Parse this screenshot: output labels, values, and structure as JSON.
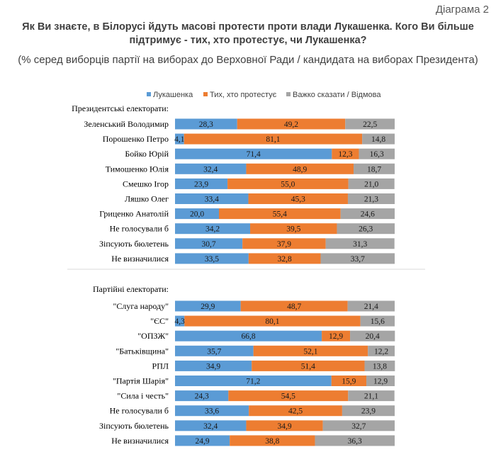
{
  "header": {
    "diagram_label": "Діаграма 2",
    "title_line1": "Як Ви знаєте, в Білорусі йдуть масові протести проти влади Лукашенка. Кого Ви більше",
    "title_line2": "підтримує - тих, хто протестує, чи Лукашенка?",
    "subtitle": "(% серед виборців партії на виборах до Верховної Ради / кандидата на виборах Президента)"
  },
  "chart_data": {
    "type": "bar",
    "orientation": "horizontal",
    "stacked": true,
    "xlim": [
      0,
      100
    ],
    "legend_position": "top",
    "legend": [
      {
        "name": "Лукашенка",
        "color": "#5b9bd5"
      },
      {
        "name": "Тих, хто протестує",
        "color": "#ed7d31"
      },
      {
        "name": "Важко сказати / Відмова",
        "color": "#a5a5a5"
      }
    ],
    "groups": [
      {
        "title": "Президентські електорати:",
        "rows": [
          {
            "label": "Зеленський Володимир",
            "values": [
              28.3,
              49.2,
              22.5
            ],
            "value_labels": [
              "28,3",
              "49,2",
              "22,5"
            ]
          },
          {
            "label": "Порошенко Петро",
            "values": [
              4.1,
              81.1,
              14.8
            ],
            "value_labels": [
              "4,1",
              "81,1",
              "14,8"
            ]
          },
          {
            "label": "Бойко Юрій",
            "values": [
              71.4,
              12.3,
              16.3
            ],
            "value_labels": [
              "71,4",
              "12,3",
              "16,3"
            ]
          },
          {
            "label": "Тимошенко Юлія",
            "values": [
              32.4,
              48.9,
              18.7
            ],
            "value_labels": [
              "32,4",
              "48,9",
              "18,7"
            ]
          },
          {
            "label": "Смешко Ігор",
            "values": [
              23.9,
              55.0,
              21.0
            ],
            "value_labels": [
              "23,9",
              "55,0",
              "21,0"
            ]
          },
          {
            "label": "Ляшко Олег",
            "values": [
              33.4,
              45.3,
              21.3
            ],
            "value_labels": [
              "33,4",
              "45,3",
              "21,3"
            ]
          },
          {
            "label": "Гриценко Анатолій",
            "values": [
              20.0,
              55.4,
              24.6
            ],
            "value_labels": [
              "20,0",
              "55,4",
              "24,6"
            ]
          },
          {
            "label": "Не голосували б",
            "values": [
              34.2,
              39.5,
              26.3
            ],
            "value_labels": [
              "34,2",
              "39,5",
              "26,3"
            ]
          },
          {
            "label": "Зіпсують бюлетень",
            "values": [
              30.7,
              37.9,
              31.3
            ],
            "value_labels": [
              "30,7",
              "37,9",
              "31,3"
            ]
          },
          {
            "label": "Не визначилися",
            "values": [
              33.5,
              32.8,
              33.7
            ],
            "value_labels": [
              "33,5",
              "32,8",
              "33,7"
            ]
          }
        ]
      },
      {
        "title": "Партійні електорати:",
        "rows": [
          {
            "label": "\"Слуга народу\"",
            "values": [
              29.9,
              48.7,
              21.4
            ],
            "value_labels": [
              "29,9",
              "48,7",
              "21,4"
            ]
          },
          {
            "label": "\"ЄС\"",
            "values": [
              4.3,
              80.1,
              15.6
            ],
            "value_labels": [
              "4,3",
              "80,1",
              "15,6"
            ]
          },
          {
            "label": "\"ОПЗЖ\"",
            "values": [
              66.8,
              12.9,
              20.4
            ],
            "value_labels": [
              "66,8",
              "12,9",
              "20,4"
            ]
          },
          {
            "label": "\"Батьківщина\"",
            "values": [
              35.7,
              52.1,
              12.2
            ],
            "value_labels": [
              "35,7",
              "52,1",
              "12,2"
            ]
          },
          {
            "label": "РПЛ",
            "values": [
              34.9,
              51.4,
              13.8
            ],
            "value_labels": [
              "34,9",
              "51,4",
              "13,8"
            ]
          },
          {
            "label": "\"Партія Шарія\"",
            "values": [
              71.2,
              15.9,
              12.9
            ],
            "value_labels": [
              "71,2",
              "15,9",
              "12,9"
            ]
          },
          {
            "label": "\"Сила і честь\"",
            "values": [
              24.3,
              54.5,
              21.1
            ],
            "value_labels": [
              "24,3",
              "54,5",
              "21,1"
            ]
          },
          {
            "label": "Не голосували б",
            "values": [
              33.6,
              42.5,
              23.9
            ],
            "value_labels": [
              "33,6",
              "42,5",
              "23,9"
            ]
          },
          {
            "label": "Зіпсують бюлетень",
            "values": [
              32.4,
              34.9,
              32.7
            ],
            "value_labels": [
              "32,4",
              "34,9",
              "32,7"
            ]
          },
          {
            "label": "Не визначилися",
            "values": [
              24.9,
              38.8,
              36.3
            ],
            "value_labels": [
              "24,9",
              "38,8",
              "36,3"
            ]
          }
        ]
      }
    ]
  }
}
